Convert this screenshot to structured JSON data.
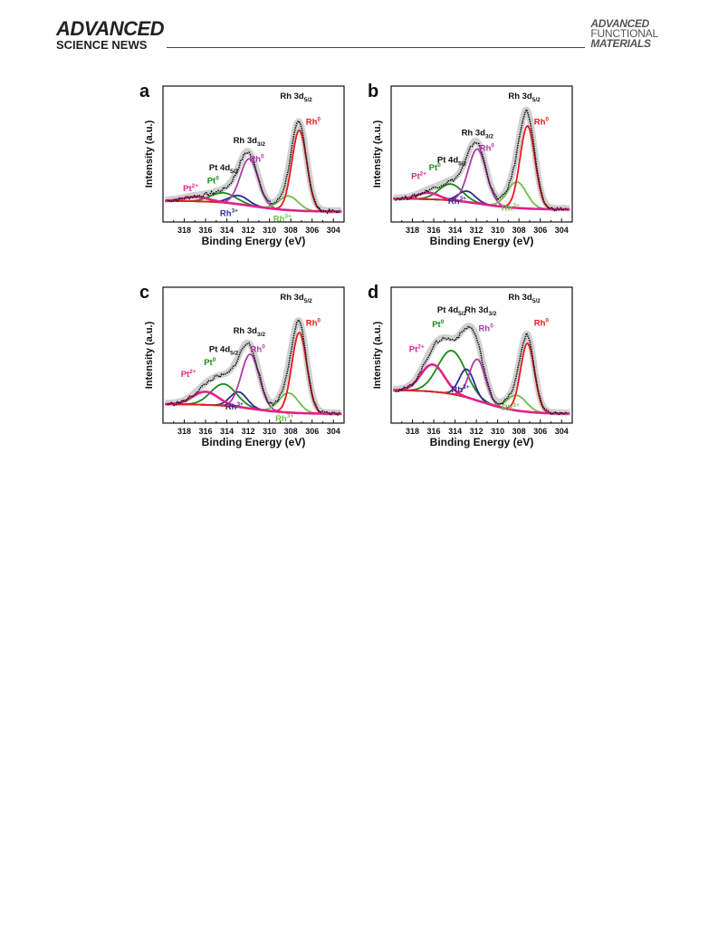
{
  "header": {
    "left_line1": "ADVANCED",
    "left_line2": "SCIENCE NEWS",
    "right_line1": "ADVANCED",
    "right_line2": "FUNCTIONAL",
    "right_line3": "MATERIALS"
  },
  "chart_data": [
    {
      "type": "line",
      "panel_label": "a",
      "xlabel": "Binding Energy (eV)",
      "ylabel": "Intensity (a.u.)",
      "xlim": [
        320,
        303
      ],
      "x_reversed": true,
      "xticks": [
        "318",
        "316",
        "314",
        "312",
        "310",
        "308",
        "306",
        "304"
      ],
      "ylim": [
        0,
        1
      ],
      "series": [
        {
          "name": "Pt²⁺",
          "color": "#e0218a",
          "center": 316.9,
          "height": 0.04,
          "width": 1.2
        },
        {
          "name": "Pt⁰",
          "color": "#1a8a1a",
          "center": 314.3,
          "height": 0.09,
          "width": 1.2
        },
        {
          "name": "Rh³⁺",
          "color": "#2b2b8f",
          "center": 312.9,
          "height": 0.08,
          "width": 0.9
        },
        {
          "name": "Rh⁰",
          "color": "#b03aa6",
          "center": 311.9,
          "height": 0.43,
          "width": 0.85
        },
        {
          "name": "Rh³⁺",
          "color": "#6cc04a",
          "center": 308.2,
          "height": 0.13,
          "width": 0.9
        },
        {
          "name": "Rh⁰",
          "color": "#e8191c",
          "center": 307.2,
          "height": 0.74,
          "width": 0.7
        }
      ],
      "background": {
        "left": 0.02,
        "right": -0.08
      },
      "annotations": [
        {
          "text": "Rh 3d",
          "sub": "5/2",
          "color": "#111111"
        },
        {
          "text": "Rh",
          "sup": "0",
          "color": "#e8191c"
        },
        {
          "text": "Rh 3d",
          "sub": "3/2",
          "color": "#111111"
        },
        {
          "text": "Rh",
          "sup": "0",
          "color": "#b03aa6"
        },
        {
          "text": "Pt 4d",
          "sub": "5/2",
          "color": "#111111"
        },
        {
          "text": "Pt",
          "sup": "0",
          "color": "#1a8a1a"
        },
        {
          "text": "Pt",
          "sup": "2+",
          "color": "#e0218a"
        },
        {
          "text": "Rh",
          "sup": "3+",
          "color": "#2b2b8f"
        },
        {
          "text": "Rh",
          "sup": "3+",
          "color": "#6cc04a"
        }
      ]
    },
    {
      "type": "line",
      "panel_label": "b",
      "xlabel": "Binding Energy (eV)",
      "ylabel": "Intensity (a.u.)",
      "xlim": [
        320,
        303
      ],
      "x_reversed": true,
      "xticks": [
        "318",
        "316",
        "314",
        "312",
        "310",
        "308",
        "306",
        "304"
      ],
      "ylim": [
        0,
        1
      ],
      "series": [
        {
          "name": "Pt²⁺",
          "color": "#e0218a",
          "center": 316.5,
          "height": 0.06,
          "width": 1.0
        },
        {
          "name": "Pt⁰",
          "color": "#1a8a1a",
          "center": 314.4,
          "height": 0.15,
          "width": 1.1
        },
        {
          "name": "Rh³⁺",
          "color": "#2b2b8f",
          "center": 312.9,
          "height": 0.1,
          "width": 0.8
        },
        {
          "name": "Rh⁰",
          "color": "#b03aa6",
          "center": 311.9,
          "height": 0.5,
          "width": 0.85
        },
        {
          "name": "Rh³⁺",
          "color": "#6cc04a",
          "center": 308.2,
          "height": 0.24,
          "width": 0.9
        },
        {
          "name": "Rh⁰",
          "color": "#e8191c",
          "center": 307.2,
          "height": 0.76,
          "width": 0.7
        }
      ],
      "background": {
        "left": 0.04,
        "right": -0.06
      },
      "annotations": [
        {
          "text": "Rh 3d",
          "sub": "5/2",
          "color": "#111111"
        },
        {
          "text": "Rh",
          "sup": "0",
          "color": "#e8191c"
        },
        {
          "text": "Rh 3d",
          "sub": "3/2",
          "color": "#111111"
        },
        {
          "text": "Rh",
          "sup": "0",
          "color": "#b03aa6"
        },
        {
          "text": "Pt 4d",
          "sub": "5/2",
          "color": "#111111"
        },
        {
          "text": "Pt",
          "sup": "0",
          "color": "#1a8a1a"
        },
        {
          "text": "Pt",
          "sup": "2+",
          "color": "#e0218a"
        },
        {
          "text": "Rh",
          "sup": "3+",
          "color": "#2b2b8f"
        },
        {
          "text": "Rh",
          "sup": "3+",
          "color": "#6cc04a"
        }
      ]
    },
    {
      "type": "line",
      "panel_label": "c",
      "xlabel": "Binding Energy (eV)",
      "ylabel": "Intensity (a.u.)",
      "xlim": [
        320,
        303
      ],
      "x_reversed": true,
      "xticks": [
        "318",
        "316",
        "314",
        "312",
        "310",
        "308",
        "306",
        "304"
      ],
      "ylim": [
        0,
        1
      ],
      "series": [
        {
          "name": "Pt²⁺",
          "color": "#e0218a",
          "center": 316.0,
          "height": 0.12,
          "width": 1.2
        },
        {
          "name": "Pt⁰",
          "color": "#1a8a1a",
          "center": 314.3,
          "height": 0.2,
          "width": 1.2
        },
        {
          "name": "Rh³⁺",
          "color": "#2b2b8f",
          "center": 312.9,
          "height": 0.14,
          "width": 0.8
        },
        {
          "name": "Rh⁰",
          "color": "#b03aa6",
          "center": 311.8,
          "height": 0.5,
          "width": 0.85
        },
        {
          "name": "Rh³⁺",
          "color": "#6cc04a",
          "center": 308.2,
          "height": 0.18,
          "width": 0.9
        },
        {
          "name": "Rh⁰",
          "color": "#e8191c",
          "center": 307.2,
          "height": 0.74,
          "width": 0.7
        }
      ],
      "background": {
        "left": 0.0,
        "right": -0.09
      },
      "annotations": [
        {
          "text": "Rh 3d",
          "sub": "5/2",
          "color": "#111111"
        },
        {
          "text": "Rh",
          "sup": "0",
          "color": "#e8191c"
        },
        {
          "text": "Rh 3d",
          "sub": "3/2",
          "color": "#111111"
        },
        {
          "text": "Rh",
          "sup": "0",
          "color": "#b03aa6"
        },
        {
          "text": "Pt 4d",
          "sub": "5/2",
          "color": "#111111"
        },
        {
          "text": "Pt",
          "sup": "0",
          "color": "#1a8a1a"
        },
        {
          "text": "Pt",
          "sup": "2+",
          "color": "#e0218a"
        },
        {
          "text": "Rh",
          "sup": "3+",
          "color": "#2b2b8f"
        },
        {
          "text": "Rh",
          "sup": "3+",
          "color": "#6cc04a"
        }
      ]
    },
    {
      "type": "line",
      "panel_label": "d",
      "xlabel": "Binding Energy (eV)",
      "ylabel": "Intensity (a.u.)",
      "xlim": [
        320,
        303
      ],
      "x_reversed": true,
      "xticks": [
        "318",
        "316",
        "314",
        "312",
        "310",
        "308",
        "306",
        "304"
      ],
      "ylim": [
        0,
        1
      ],
      "series": [
        {
          "name": "Pt²⁺",
          "color": "#e0218a",
          "center": 316.1,
          "height": 0.25,
          "width": 1.1
        },
        {
          "name": "Pt⁰",
          "color": "#1a8a1a",
          "center": 314.3,
          "height": 0.4,
          "width": 1.3
        },
        {
          "name": "Rh³⁺",
          "color": "#2b2b8f",
          "center": 312.9,
          "height": 0.26,
          "width": 0.7
        },
        {
          "name": "Rh⁰",
          "color": "#b03aa6",
          "center": 311.9,
          "height": 0.38,
          "width": 0.75
        },
        {
          "name": "Rh³⁺",
          "color": "#6cc04a",
          "center": 308.2,
          "height": 0.14,
          "width": 0.9
        },
        {
          "name": "Rh⁰",
          "color": "#e8191c",
          "center": 307.2,
          "height": 0.63,
          "width": 0.65
        }
      ],
      "background": {
        "left": 0.13,
        "right": -0.09
      },
      "annotations": [
        {
          "text": "Rh 3d",
          "sub": "5/2",
          "color": "#111111"
        },
        {
          "text": "Rh",
          "sup": "0",
          "color": "#e8191c"
        },
        {
          "text": "Rh 3d",
          "sub": "3/2",
          "color": "#111111"
        },
        {
          "text": "Rh",
          "sup": "0",
          "color": "#b03aa6"
        },
        {
          "text": "Pt 4d",
          "sub": "5/2",
          "color": "#111111"
        },
        {
          "text": "Pt",
          "sup": "0",
          "color": "#1a8a1a"
        },
        {
          "text": "Pt",
          "sup": "2+",
          "color": "#e0218a"
        },
        {
          "text": "Rh",
          "sup": "3+",
          "color": "#2b2b8f"
        },
        {
          "text": "Rh",
          "sup": "3+",
          "color": "#6cc04a"
        }
      ]
    }
  ]
}
